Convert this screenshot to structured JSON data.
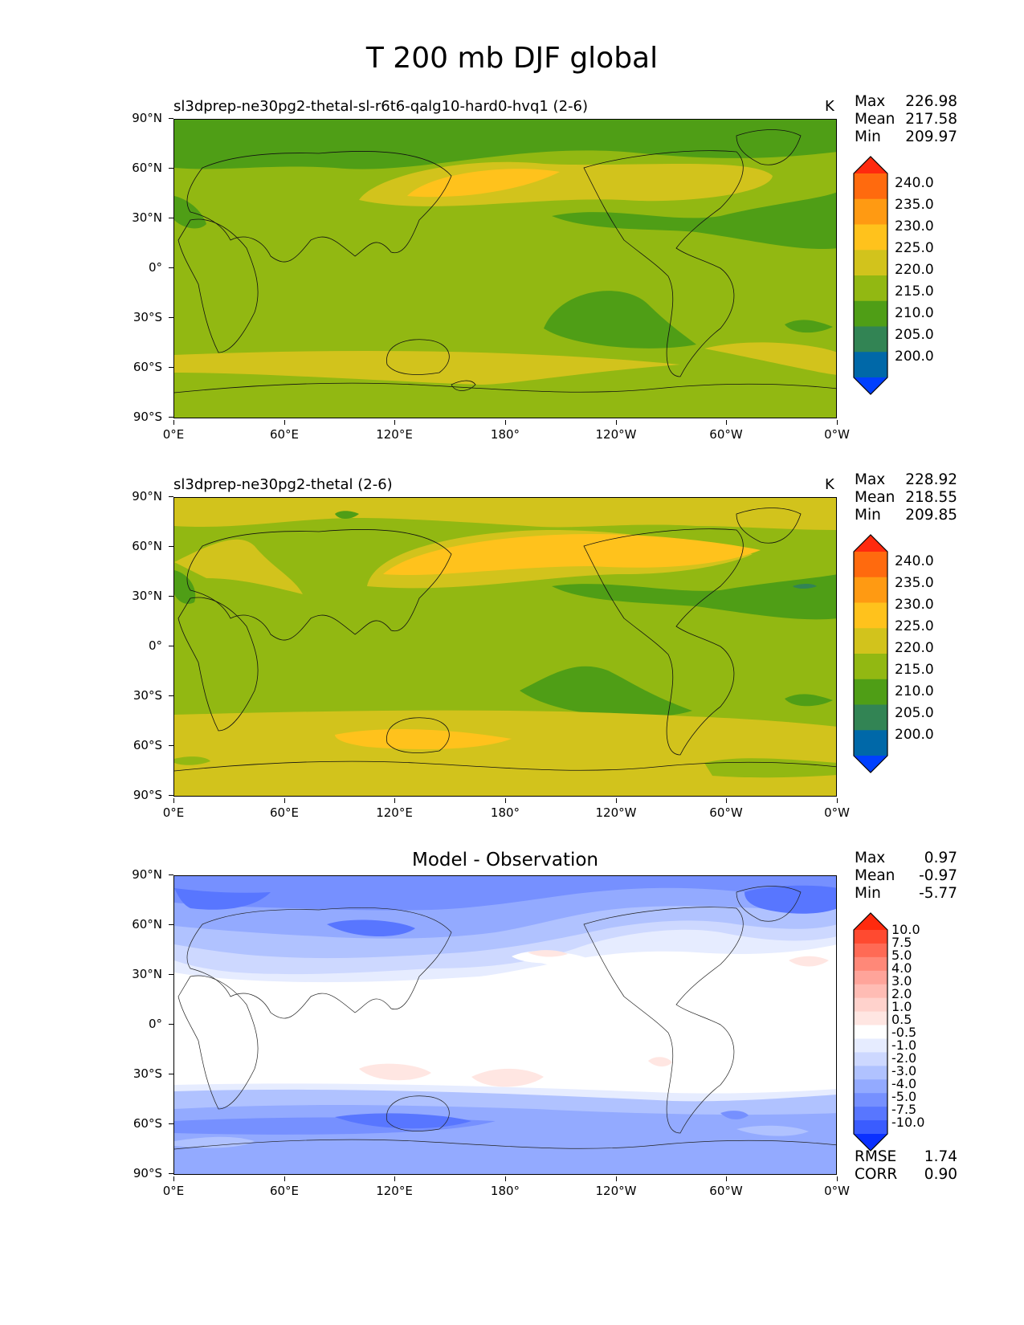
{
  "figure_title": "T 200 mb DJF global",
  "lat_ticks": [
    "90°N",
    "60°N",
    "30°N",
    "0°",
    "30°S",
    "60°S",
    "90°S"
  ],
  "lon_ticks": [
    "0°E",
    "60°E",
    "120°E",
    "180°",
    "120°W",
    "60°W",
    "0°W"
  ],
  "panels": [
    {
      "title": "sl3dprep-ne30pg2-thetal-sl-r6t6-qalg10-hard0-hvq1 (2-6)",
      "units": "K",
      "stats": [
        {
          "label": "Max",
          "value": "226.98"
        },
        {
          "label": "Mean",
          "value": "217.58"
        },
        {
          "label": "Min",
          "value": "209.97"
        }
      ],
      "colorbar_labels": [
        "240.0",
        "235.0",
        "230.0",
        "225.0",
        "220.0",
        "215.0",
        "210.0",
        "205.0",
        "200.0"
      ],
      "colorbar_colors": [
        "#ff2a0e",
        "#ff6a0e",
        "#ff9a12",
        "#ffc21c",
        "#d2c31c",
        "#92b812",
        "#4f9e16",
        "#328454",
        "#0068a8",
        "#0040ff"
      ]
    },
    {
      "title": "sl3dprep-ne30pg2-thetal (2-6)",
      "units": "K",
      "stats": [
        {
          "label": "Max",
          "value": "228.92"
        },
        {
          "label": "Mean",
          "value": "218.55"
        },
        {
          "label": "Min",
          "value": "209.85"
        }
      ],
      "colorbar_labels": [
        "240.0",
        "235.0",
        "230.0",
        "225.0",
        "220.0",
        "215.0",
        "210.0",
        "205.0",
        "200.0"
      ],
      "colorbar_colors": [
        "#ff2a0e",
        "#ff6a0e",
        "#ff9a12",
        "#ffc21c",
        "#d2c31c",
        "#92b812",
        "#4f9e16",
        "#328454",
        "#0068a8",
        "#0040ff"
      ]
    },
    {
      "title": "Model - Observation",
      "units": "",
      "stats": [
        {
          "label": "Max",
          "value": "0.97"
        },
        {
          "label": "Mean",
          "value": "-0.97"
        },
        {
          "label": "Min",
          "value": "-5.77"
        }
      ],
      "colorbar_labels": [
        "10.0",
        "7.5",
        "5.0",
        "4.0",
        "3.0",
        "2.0",
        "1.0",
        "0.5",
        "-0.5",
        "-1.0",
        "-2.0",
        "-3.0",
        "-4.0",
        "-5.0",
        "-7.5",
        "-10.0"
      ],
      "colorbar_colors": [
        "#ff2a0e",
        "#ff4a30",
        "#ff6a55",
        "#ff8878",
        "#ffa49a",
        "#ffbcb4",
        "#ffd2cc",
        "#ffe6e2",
        "#ffffff",
        "#e6ecff",
        "#cdd8ff",
        "#b0c2ff",
        "#93aaff",
        "#7690ff",
        "#5876ff",
        "#3a5cff",
        "#0a30ff"
      ],
      "metrics": [
        {
          "label": "RMSE",
          "value": "1.74"
        },
        {
          "label": "CORR",
          "value": "0.90"
        }
      ]
    }
  ]
}
